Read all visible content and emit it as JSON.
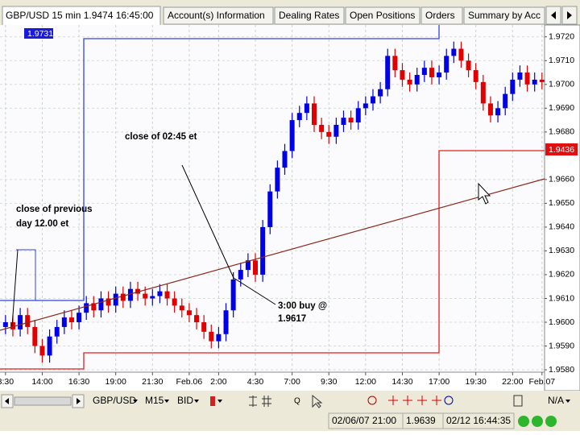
{
  "window": {
    "title": "GBP/USD 15 min 1.9474 16:45:00",
    "tabs": [
      "Account(s) Information",
      "Dealing Rates",
      "Open Positions",
      "Orders",
      "Summary by Acc"
    ]
  },
  "chart_data": {
    "type": "candlestick",
    "x": [
      0,
      2,
      4,
      6,
      8,
      10,
      12,
      14,
      16,
      18,
      20,
      22,
      24,
      26,
      28,
      30,
      32,
      34,
      36,
      38,
      40,
      42,
      44,
      46,
      48,
      50,
      52,
      54,
      56,
      58,
      60,
      62,
      64,
      66,
      68,
      70,
      72,
      74,
      76,
      78,
      80,
      82,
      84,
      86,
      88,
      90,
      92,
      94,
      96,
      98,
      100,
      102,
      104,
      106,
      108,
      110,
      112,
      114,
      116,
      118,
      120,
      122,
      124,
      126,
      128,
      130,
      132,
      134,
      136,
      138,
      140,
      142,
      144,
      146
    ],
    "open": [
      1.9598,
      1.96,
      1.9597,
      1.9603,
      1.9598,
      1.959,
      1.9586,
      1.9594,
      1.9598,
      1.9602,
      1.96,
      1.9604,
      1.9608,
      1.9605,
      1.961,
      1.9607,
      1.9612,
      1.9609,
      1.9614,
      1.9612,
      1.961,
      1.9611,
      1.9613,
      1.961,
      1.9607,
      1.9605,
      1.9603,
      1.96,
      1.9596,
      1.9592,
      1.9595,
      1.9605,
      1.9618,
      1.9622,
      1.9626,
      1.962,
      1.964,
      1.9655,
      1.9665,
      1.9672,
      1.9685,
      1.9688,
      1.9692,
      1.9683,
      1.968,
      1.9678,
      1.9683,
      1.9686,
      1.9684,
      1.969,
      1.9692,
      1.9695,
      1.9698,
      1.9712,
      1.9706,
      1.9702,
      1.97,
      1.9704,
      1.9707,
      1.9703,
      1.9705,
      1.9712,
      1.9715,
      1.971,
      1.9706,
      1.9701,
      1.9692,
      1.9687,
      1.969,
      1.9696,
      1.9702,
      1.9705,
      1.97,
      1.9702
    ],
    "high": [
      1.9603,
      1.9603,
      1.9606,
      1.9606,
      1.9601,
      1.9593,
      1.9597,
      1.9601,
      1.9605,
      1.9605,
      1.9607,
      1.9611,
      1.9611,
      1.9613,
      1.9613,
      1.9615,
      1.9615,
      1.9617,
      1.9617,
      1.9615,
      1.9614,
      1.9616,
      1.9616,
      1.9613,
      1.961,
      1.9608,
      1.9606,
      1.9603,
      1.9599,
      1.9598,
      1.9608,
      1.9621,
      1.9625,
      1.9629,
      1.9629,
      1.9643,
      1.9658,
      1.9668,
      1.9675,
      1.9688,
      1.9691,
      1.9695,
      1.9695,
      1.9686,
      1.9683,
      1.9686,
      1.9689,
      1.9689,
      1.9693,
      1.9695,
      1.9698,
      1.9701,
      1.9715,
      1.9715,
      1.9709,
      1.9705,
      1.9707,
      1.971,
      1.971,
      1.9708,
      1.9715,
      1.9718,
      1.9718,
      1.9713,
      1.9709,
      1.9704,
      1.9695,
      1.9693,
      1.9699,
      1.9705,
      1.9708,
      1.9708,
      1.9705,
      1.9705
    ],
    "low": [
      1.9595,
      1.9594,
      1.9594,
      1.9595,
      1.9587,
      1.9583,
      1.9583,
      1.9591,
      1.9595,
      1.9597,
      1.9597,
      1.9601,
      1.9602,
      1.9602,
      1.9604,
      1.9604,
      1.9606,
      1.9606,
      1.9609,
      1.9607,
      1.9607,
      1.9608,
      1.9607,
      1.9604,
      1.9602,
      1.96,
      1.9597,
      1.9593,
      1.9589,
      1.9589,
      1.9592,
      1.9602,
      1.9615,
      1.9619,
      1.9617,
      1.9617,
      1.9637,
      1.9652,
      1.9662,
      1.9669,
      1.9682,
      1.9685,
      1.968,
      1.9677,
      1.9675,
      1.9675,
      1.968,
      1.9681,
      1.9681,
      1.9687,
      1.9689,
      1.9692,
      1.9695,
      1.9703,
      1.9699,
      1.9697,
      1.9697,
      1.9701,
      1.97,
      1.97,
      1.9702,
      1.9709,
      1.9707,
      1.9703,
      1.9698,
      1.9689,
      1.9684,
      1.9684,
      1.9687,
      1.9693,
      1.9699,
      1.9697,
      1.9697,
      1.9698
    ],
    "close": [
      1.96,
      1.9597,
      1.9603,
      1.9598,
      1.959,
      1.9586,
      1.9594,
      1.9598,
      1.9602,
      1.96,
      1.9604,
      1.9608,
      1.9605,
      1.961,
      1.9607,
      1.9612,
      1.9609,
      1.9614,
      1.9612,
      1.961,
      1.9611,
      1.9613,
      1.961,
      1.9607,
      1.9605,
      1.9603,
      1.96,
      1.9596,
      1.9592,
      1.9595,
      1.9605,
      1.9618,
      1.9622,
      1.9626,
      1.962,
      1.964,
      1.9655,
      1.9665,
      1.9672,
      1.9685,
      1.9688,
      1.9692,
      1.9683,
      1.968,
      1.9678,
      1.9683,
      1.9686,
      1.9684,
      1.969,
      1.9692,
      1.9695,
      1.9698,
      1.9712,
      1.9706,
      1.9702,
      1.97,
      1.9704,
      1.9707,
      1.9703,
      1.9705,
      1.9712,
      1.9715,
      1.971,
      1.9706,
      1.9701,
      1.9692,
      1.9687,
      1.969,
      1.9696,
      1.9702,
      1.9705,
      1.97,
      1.9702,
      1.9701
    ],
    "up_color": "#0000e6",
    "down_color": "#e00000",
    "xlim": [
      -1.5,
      146.7
    ],
    "xticks": [
      {
        "value": 0,
        "label": "3:30"
      },
      {
        "value": 10,
        "label": "14:00"
      },
      {
        "value": 20,
        "label": "16:30"
      },
      {
        "value": 30,
        "label": "19:00"
      },
      {
        "value": 40,
        "label": "21:30"
      },
      {
        "value": 50,
        "label": "Feb.06"
      },
      {
        "value": 58,
        "label": "2:00"
      },
      {
        "value": 68,
        "label": "4:30"
      },
      {
        "value": 78,
        "label": "7:00"
      },
      {
        "value": 88,
        "label": "9:30"
      },
      {
        "value": 98,
        "label": "12:00"
      },
      {
        "value": 108,
        "label": "14:30"
      },
      {
        "value": 118,
        "label": "17:00"
      },
      {
        "value": 128,
        "label": "19:30"
      },
      {
        "value": 138,
        "label": "22:00"
      },
      {
        "value": 146,
        "label": "Feb.07"
      }
    ],
    "ylim": [
      1.9579,
      1.9725
    ],
    "yticks": [
      {
        "value": 1.958,
        "label": "1.9580"
      },
      {
        "value": 1.959,
        "label": "1.9590"
      },
      {
        "value": 1.96,
        "label": "1.9600"
      },
      {
        "value": 1.961,
        "label": "1.9610"
      },
      {
        "value": 1.962,
        "label": "1.9620"
      },
      {
        "value": 1.963,
        "label": "1.9630"
      },
      {
        "value": 1.964,
        "label": "1.9640"
      },
      {
        "value": 1.965,
        "label": "1.9650"
      },
      {
        "value": 1.966,
        "label": "1.9660"
      },
      {
        "value": 1.968,
        "label": "1.9680"
      },
      {
        "value": 1.969,
        "label": "1.9690"
      },
      {
        "value": 1.97,
        "label": "1.9700"
      },
      {
        "value": 1.971,
        "label": "1.9710"
      },
      {
        "value": 1.972,
        "label": "1.9720"
      }
    ],
    "grid": true,
    "price_tags": [
      "1.9731",
      "1.9436"
    ],
    "annotations": [
      "close of 02:45 et",
      "close of previous",
      "day 12.00 et",
      "3:00 buy @",
      "1.9617"
    ]
  },
  "toolbar": {
    "symbol": "GBP/USD",
    "period": "M15",
    "price": "BID",
    "zoom": "Q",
    "mode": "N/A"
  },
  "status_bar": {
    "time": "02/06/07 21:00",
    "price": "1.9639",
    "clock": "02/12 16:44:35"
  }
}
